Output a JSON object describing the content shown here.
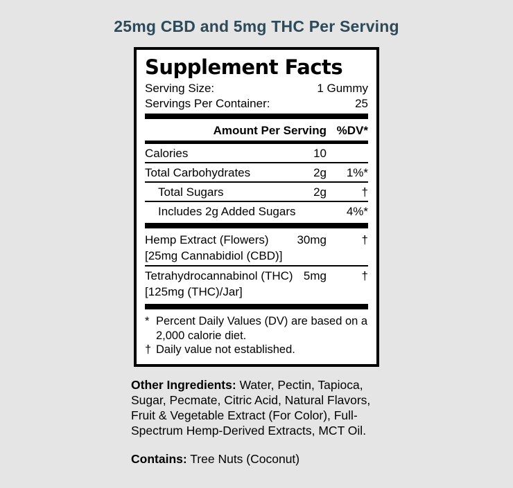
{
  "page": {
    "background_color": "#e4e5e4",
    "title": "25mg CBD and 5mg THC Per Serving",
    "title_color": "#2d4a5a"
  },
  "panel": {
    "heading": "Supplement Facts",
    "serving_size": {
      "label": "Serving Size:",
      "value": "1 Gummy"
    },
    "servings_per_container": {
      "label": "Servings Per Container:",
      "value": "25"
    },
    "column_headers": {
      "amount": "Amount Per Serving",
      "dv": "%DV*"
    },
    "rows": [
      {
        "name": "Calories",
        "amount": "10",
        "dv": ""
      },
      {
        "name": "Total Carbohydrates",
        "amount": "2g",
        "dv": "1%*"
      },
      {
        "name": "Total Sugars",
        "amount": "2g",
        "dv": "†"
      },
      {
        "name": "Includes 2g Added Sugars",
        "amount": "",
        "dv": "4%*"
      },
      {
        "name": "Hemp Extract (Flowers)",
        "amount": "30mg",
        "dv": "†",
        "subline": "[25mg Cannabidiol (CBD)]"
      },
      {
        "name": "Tetrahydrocannabinol (THC)",
        "amount": "5mg",
        "dv": "†",
        "subline": "[125mg (THC)/Jar]"
      }
    ],
    "footnotes": [
      {
        "symbol": "*",
        "text": "Percent Daily Values (DV) are based on a 2,000 calorie diet."
      },
      {
        "symbol": "†",
        "text": "Daily value not established."
      }
    ]
  },
  "other_ingredients": {
    "label": "Other Ingredients:",
    "text": "Water, Pectin, Tapioca, Sugar, Pecmate, Citric Acid, Natural Flavors, Fruit & Vegetable Extract (For Color), Full-Spectrum Hemp-Derived Extracts, MCT Oil."
  },
  "contains": {
    "label": "Contains:",
    "text": "Tree Nuts (Coconut)"
  }
}
